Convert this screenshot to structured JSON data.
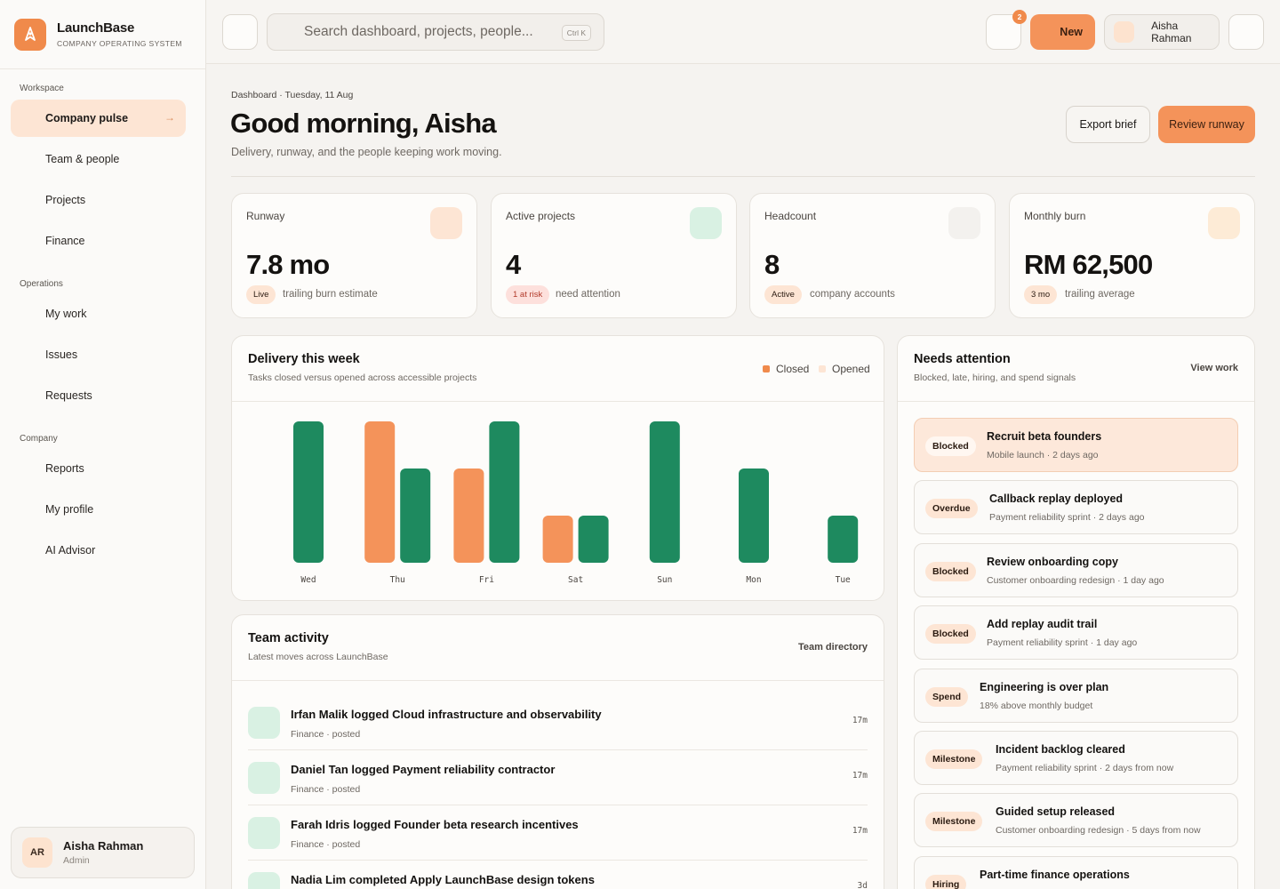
{
  "brand": {
    "name": "LaunchBase",
    "subtitle": "COMPANY OPERATING SYSTEM"
  },
  "sidebar": {
    "sections": [
      {
        "label": "Workspace",
        "items": [
          {
            "label": "Company pulse",
            "active": true
          },
          {
            "label": "Team & people"
          },
          {
            "label": "Projects"
          },
          {
            "label": "Finance"
          }
        ]
      },
      {
        "label": "Operations",
        "items": [
          {
            "label": "My work"
          },
          {
            "label": "Issues"
          },
          {
            "label": "Requests"
          }
        ]
      },
      {
        "label": "Company",
        "items": [
          {
            "label": "Reports"
          },
          {
            "label": "My profile"
          },
          {
            "label": "AI Advisor"
          }
        ]
      }
    ],
    "active_arrow": "→",
    "user": {
      "initials": "AR",
      "name": "Aisha Rahman",
      "role": "Admin"
    }
  },
  "topbar": {
    "search_placeholder": "Search dashboard, projects, people...",
    "shortcut": "Ctrl K",
    "notifications_count": "2",
    "new_label": "New",
    "user_name": "Aisha Rahman"
  },
  "header": {
    "breadcrumb": "Dashboard · Tuesday, 11 Aug",
    "greeting": "Good morning, Aisha",
    "subtitle": "Delivery, runway, and the people keeping work moving.",
    "export_label": "Export brief",
    "review_label": "Review runway"
  },
  "stats": [
    {
      "label": "Runway",
      "value": "7.8 mo",
      "tag": "Live",
      "note": "trailing burn estimate",
      "icon_color": "#fde5d4",
      "tag_bg": "#fde5d4",
      "tag_color": "#2a1a10"
    },
    {
      "label": "Active projects",
      "value": "4",
      "tag": "1 at risk",
      "note": "need attention",
      "icon_color": "#d9f1e3",
      "tag_bg": "#fde0dc",
      "tag_color": "#b23a2a"
    },
    {
      "label": "Headcount",
      "value": "8",
      "tag": "Active",
      "note": "company accounts",
      "icon_color": "#f3f1ee",
      "tag_bg": "#fde5d4",
      "tag_color": "#2a1a10"
    },
    {
      "label": "Monthly burn",
      "value": "RM 62,500",
      "tag": "3 mo",
      "note": "trailing average",
      "icon_color": "#fdebd6",
      "tag_bg": "#fde5d4",
      "tag_color": "#2a1a10"
    }
  ],
  "delivery": {
    "title": "Delivery this week",
    "subtitle": "Tasks closed versus opened across accessible projects",
    "legend_closed": "Closed",
    "legend_opened": "Opened"
  },
  "chart_data": {
    "type": "bar",
    "title": "Delivery this week",
    "categories": [
      "Wed",
      "Thu",
      "Fri",
      "Sat",
      "Sun",
      "Mon",
      "Tue"
    ],
    "series": [
      {
        "name": "Opened",
        "values": [
          0,
          3,
          2,
          1,
          0,
          0,
          0
        ],
        "color": "#f4935a"
      },
      {
        "name": "Closed",
        "values": [
          3,
          2,
          3,
          1,
          3,
          2,
          1
        ],
        "color": "#1e8a5f"
      }
    ],
    "ylim": [
      0,
      3
    ],
    "grid": false,
    "legend": "top-right"
  },
  "needs": {
    "title": "Needs attention",
    "subtitle": "Blocked, late, hiring, and spend signals",
    "view_label": "View work",
    "items": [
      {
        "tag": "Blocked",
        "title": "Recruit beta founders",
        "sub": "Mobile launch · 2 days ago",
        "highlight": true
      },
      {
        "tag": "Overdue",
        "title": "Callback replay deployed",
        "sub": "Payment reliability sprint · 2 days ago"
      },
      {
        "tag": "Blocked",
        "title": "Review onboarding copy",
        "sub": "Customer onboarding redesign · 1 day ago"
      },
      {
        "tag": "Blocked",
        "title": "Add replay audit trail",
        "sub": "Payment reliability sprint · 1 day ago"
      },
      {
        "tag": "Spend",
        "title": "Engineering is over plan",
        "sub": "18% above monthly budget"
      },
      {
        "tag": "Milestone",
        "title": "Incident backlog cleared",
        "sub": "Payment reliability sprint · 2 days from now"
      },
      {
        "tag": "Milestone",
        "title": "Guided setup released",
        "sub": "Customer onboarding redesign · 5 days from now"
      },
      {
        "tag": "Hiring",
        "title": "Part-time finance operations",
        "sub": ""
      }
    ]
  },
  "activity": {
    "title": "Team activity",
    "subtitle": "Latest moves across LaunchBase",
    "directory_label": "Team directory",
    "items": [
      {
        "title": "Irfan Malik logged Cloud infrastructure and observability",
        "sub": "Finance · posted",
        "time": "17m"
      },
      {
        "title": "Daniel Tan logged Payment reliability contractor",
        "sub": "Finance · posted",
        "time": "17m"
      },
      {
        "title": "Farah Idris logged Founder beta research incentives",
        "sub": "Finance · posted",
        "time": "17m"
      },
      {
        "title": "Nadia Lim completed Apply LaunchBase design tokens",
        "sub": "",
        "time": "3d"
      }
    ]
  }
}
